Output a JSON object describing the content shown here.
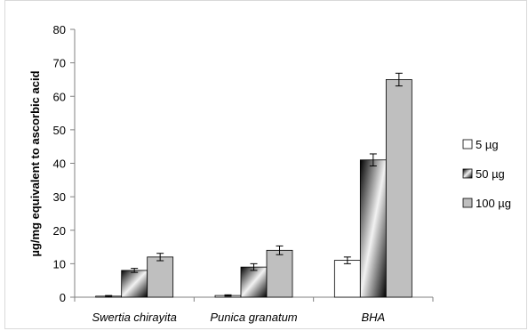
{
  "chart_data": {
    "type": "bar",
    "title": "",
    "xlabel": "",
    "ylabel": "µg/mg equivalent to ascorbic acid",
    "categories": [
      "Swertia chirayita",
      "Punica granatum",
      "BHA"
    ],
    "series": [
      {
        "name": "5 µg",
        "values": [
          0.3,
          0.5,
          11
        ],
        "errors": [
          0.2,
          0.2,
          1.0
        ],
        "fill": "#ffffff"
      },
      {
        "name": "50 µg",
        "values": [
          8,
          9,
          41
        ],
        "errors": [
          0.6,
          1.0,
          1.8
        ],
        "fill": "gradient-dark"
      },
      {
        "name": "100 µg",
        "values": [
          12,
          14,
          65
        ],
        "errors": [
          1.1,
          1.3,
          1.9
        ],
        "fill": "#bfbfbf"
      }
    ],
    "yticks": [
      0,
      10,
      20,
      30,
      40,
      50,
      60,
      70,
      80
    ],
    "ylim": [
      0,
      80
    ],
    "grid": false,
    "legend_position": "right"
  },
  "colors": {
    "axis": "#808080",
    "bar_stroke": "#000000",
    "light_bar": "#bfbfbf",
    "white_bar": "#ffffff"
  }
}
